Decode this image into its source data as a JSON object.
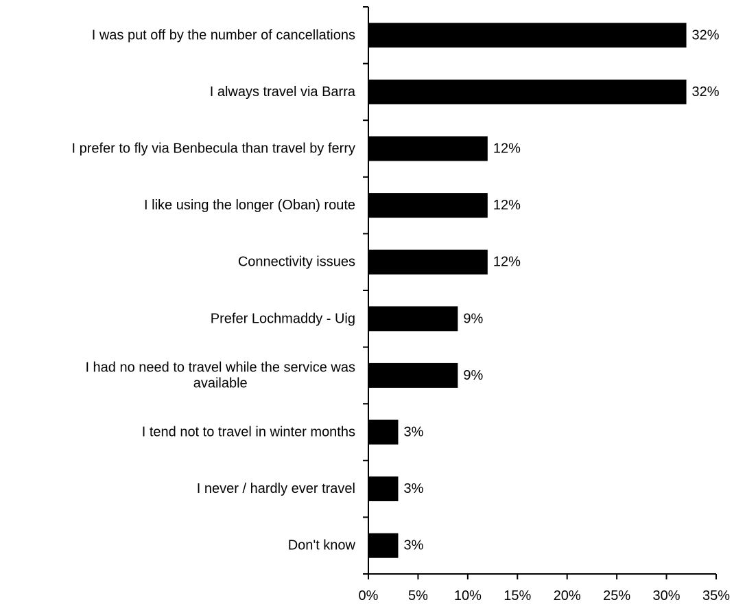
{
  "chart_data": {
    "type": "bar",
    "orientation": "horizontal",
    "title": "",
    "xlabel": "",
    "ylabel": "",
    "categories": [
      [
        "I was put off by the number of cancellations"
      ],
      [
        "I always travel via Barra"
      ],
      [
        "I prefer to fly via Benbecula than travel by ferry"
      ],
      [
        "I like using the longer (Oban) route"
      ],
      [
        "Connectivity issues"
      ],
      [
        "Prefer Lochmaddy - Uig"
      ],
      [
        "I had no need to travel while the service was",
        "available"
      ],
      [
        "I tend not to travel in winter months"
      ],
      [
        "I never / hardly ever travel"
      ],
      [
        "Don't know"
      ]
    ],
    "values": [
      32,
      32,
      12,
      12,
      12,
      9,
      9,
      3,
      3,
      3
    ],
    "value_labels": [
      "32%",
      "32%",
      "12%",
      "12%",
      "12%",
      "9%",
      "9%",
      "3%",
      "3%",
      "3%"
    ],
    "xlim": [
      0,
      35
    ],
    "x_ticks": [
      0,
      5,
      10,
      15,
      20,
      25,
      30,
      35
    ],
    "x_tick_labels": [
      "0%",
      "5%",
      "10%",
      "15%",
      "20%",
      "25%",
      "30%",
      "35%"
    ],
    "grid": false,
    "legend": "none",
    "colors": {
      "bar": "#000000",
      "axis": "#000000",
      "text": "#000000"
    }
  }
}
